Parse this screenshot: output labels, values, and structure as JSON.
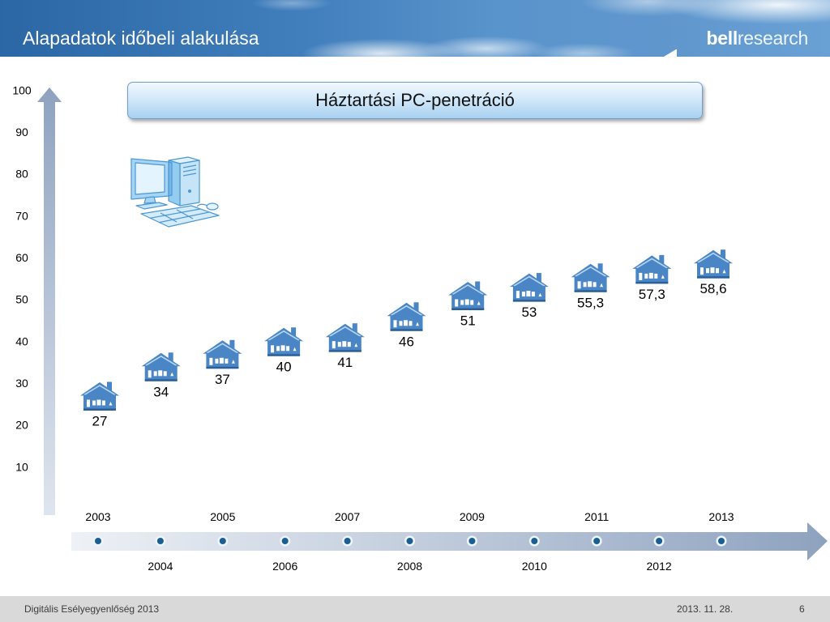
{
  "header": {
    "title": "Alapadatok időbeli alakulása",
    "logo": {
      "bell": "bell",
      "research": "research"
    }
  },
  "illustration": {
    "icon": "desktop-computer-icon"
  },
  "chart_data": {
    "type": "scatter",
    "title": "Háztartási PC-penetráció",
    "xlabel": "",
    "ylabel": "",
    "x": [
      2003,
      2004,
      2005,
      2006,
      2007,
      2008,
      2009,
      2010,
      2011,
      2012,
      2013
    ],
    "values": [
      27,
      34,
      37,
      40,
      41,
      46,
      51,
      53,
      55.3,
      57.3,
      58.6
    ],
    "data_labels": [
      "27",
      "34",
      "37",
      "40",
      "41",
      "46",
      "51",
      "53",
      "55,3",
      "57,3",
      "58,6"
    ],
    "y_ticks": [
      10,
      20,
      30,
      40,
      50,
      60,
      70,
      80,
      90,
      100
    ],
    "ylim": [
      0,
      100
    ],
    "grid": false,
    "marker_icon": "house-icon",
    "colors": {
      "marker": "#4a86c5",
      "axis_dot": "#1b5e91"
    }
  },
  "footer": {
    "left": "Digitális Esélyegyenlőség 2013",
    "date": "2013. 11. 28.",
    "page": "6"
  }
}
